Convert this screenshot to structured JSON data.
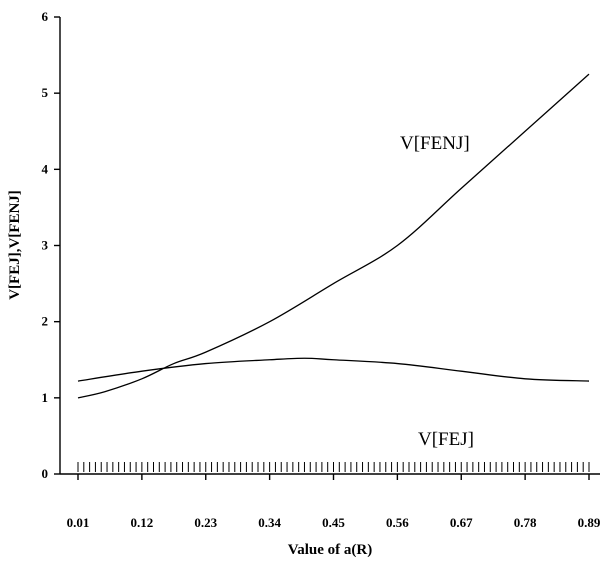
{
  "chart_data": {
    "type": "line",
    "title": "",
    "xlabel": "Value of a(R)",
    "ylabel": "V[FEJ],V[FENJ]",
    "xlim": [
      0.01,
      0.9
    ],
    "ylim": [
      0,
      6
    ],
    "x_ticks": [
      "0.01",
      "0.12",
      "0.23",
      "0.34",
      "0.45",
      "0.56",
      "0.67",
      "0.78",
      "0.89"
    ],
    "y_ticks": [
      "0",
      "1",
      "2",
      "3",
      "4",
      "5",
      "6"
    ],
    "grid": false,
    "series": [
      {
        "name": "V[FENJ]",
        "x": [
          0.01,
          0.056,
          0.12,
          0.175,
          0.23,
          0.34,
          0.45,
          0.56,
          0.67,
          0.78,
          0.89
        ],
        "y": [
          1.0,
          1.08,
          1.25,
          1.45,
          1.6,
          2.0,
          2.5,
          3.0,
          3.75,
          4.5,
          5.25
        ]
      },
      {
        "name": "V[FEJ]",
        "x": [
          0.01,
          0.12,
          0.23,
          0.34,
          0.4,
          0.45,
          0.56,
          0.67,
          0.78,
          0.89
        ],
        "y": [
          1.22,
          1.35,
          1.45,
          1.5,
          1.52,
          1.5,
          1.45,
          1.35,
          1.25,
          1.22
        ]
      }
    ],
    "rug_x_count": 89
  }
}
